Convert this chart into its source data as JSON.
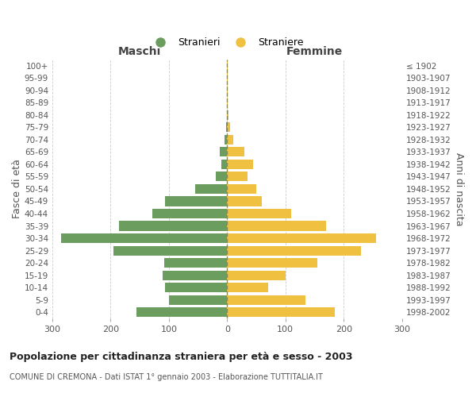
{
  "age_groups": [
    "0-4",
    "5-9",
    "10-14",
    "15-19",
    "20-24",
    "25-29",
    "30-34",
    "35-39",
    "40-44",
    "45-49",
    "50-54",
    "55-59",
    "60-64",
    "65-69",
    "70-74",
    "75-79",
    "80-84",
    "85-89",
    "90-94",
    "95-99",
    "100+"
  ],
  "birth_years": [
    "1998-2002",
    "1993-1997",
    "1988-1992",
    "1983-1987",
    "1978-1982",
    "1973-1977",
    "1968-1972",
    "1963-1967",
    "1958-1962",
    "1953-1957",
    "1948-1952",
    "1943-1947",
    "1938-1942",
    "1933-1937",
    "1928-1932",
    "1923-1927",
    "1918-1922",
    "1913-1917",
    "1908-1912",
    "1903-1907",
    "≤ 1902"
  ],
  "maschi": [
    155,
    100,
    107,
    110,
    108,
    195,
    285,
    185,
    128,
    107,
    55,
    20,
    10,
    12,
    5,
    2,
    1,
    0,
    0,
    0,
    0
  ],
  "femmine": [
    185,
    135,
    70,
    100,
    155,
    230,
    255,
    170,
    110,
    60,
    50,
    35,
    45,
    30,
    10,
    5,
    2,
    1,
    1,
    1,
    1
  ],
  "male_color": "#6b9e5e",
  "female_color": "#f0c040",
  "title": "Popolazione per cittadinanza straniera per età e sesso - 2003",
  "subtitle": "COMUNE DI CREMONA - Dati ISTAT 1° gennaio 2003 - Elaborazione TUTTITALIA.IT",
  "ylabel_left": "Fasce di età",
  "ylabel_right": "Anni di nascita",
  "xlabel_maschi": "Maschi",
  "xlabel_femmine": "Femmine",
  "legend_stranieri": "Stranieri",
  "legend_straniere": "Straniere",
  "xlim": 300,
  "background_color": "#ffffff",
  "grid_color": "#cccccc"
}
